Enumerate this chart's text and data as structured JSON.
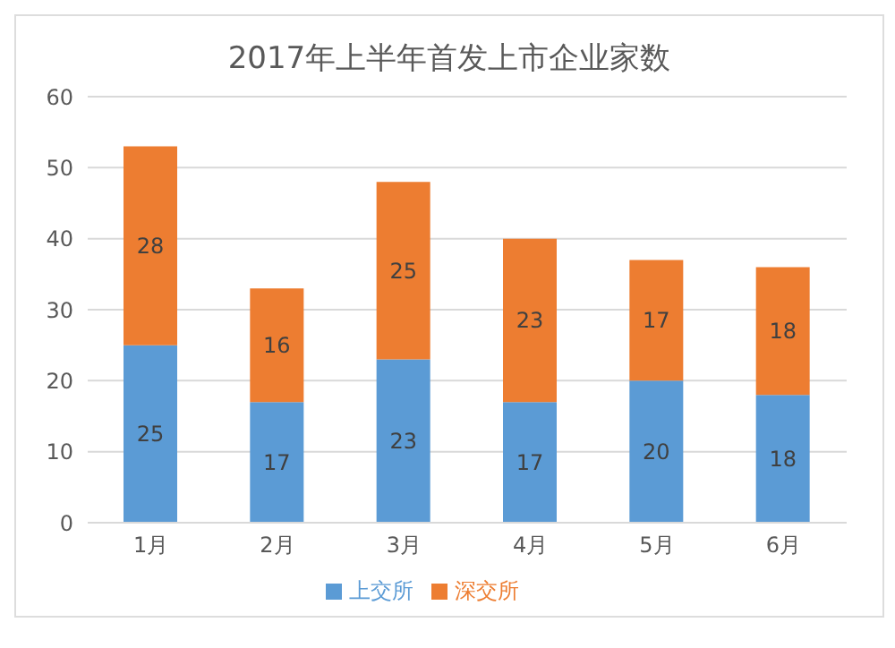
{
  "chart_data": {
    "type": "bar",
    "title": "2017年上半年首发上市企业家数",
    "categories": [
      "1月",
      "2月",
      "3月",
      "4月",
      "5月",
      "6月"
    ],
    "stacked": true,
    "series": [
      {
        "name": "上交所",
        "color": "#5b9bd5",
        "values": [
          25,
          17,
          23,
          17,
          20,
          18
        ]
      },
      {
        "name": "深交所",
        "color": "#ed7d31",
        "values": [
          28,
          16,
          25,
          23,
          17,
          18
        ]
      }
    ],
    "ylim": [
      0,
      60
    ],
    "yticks": [
      0,
      10,
      20,
      30,
      40,
      50,
      60
    ],
    "grid": "y",
    "legend": "bottom",
    "data_labels": true
  }
}
